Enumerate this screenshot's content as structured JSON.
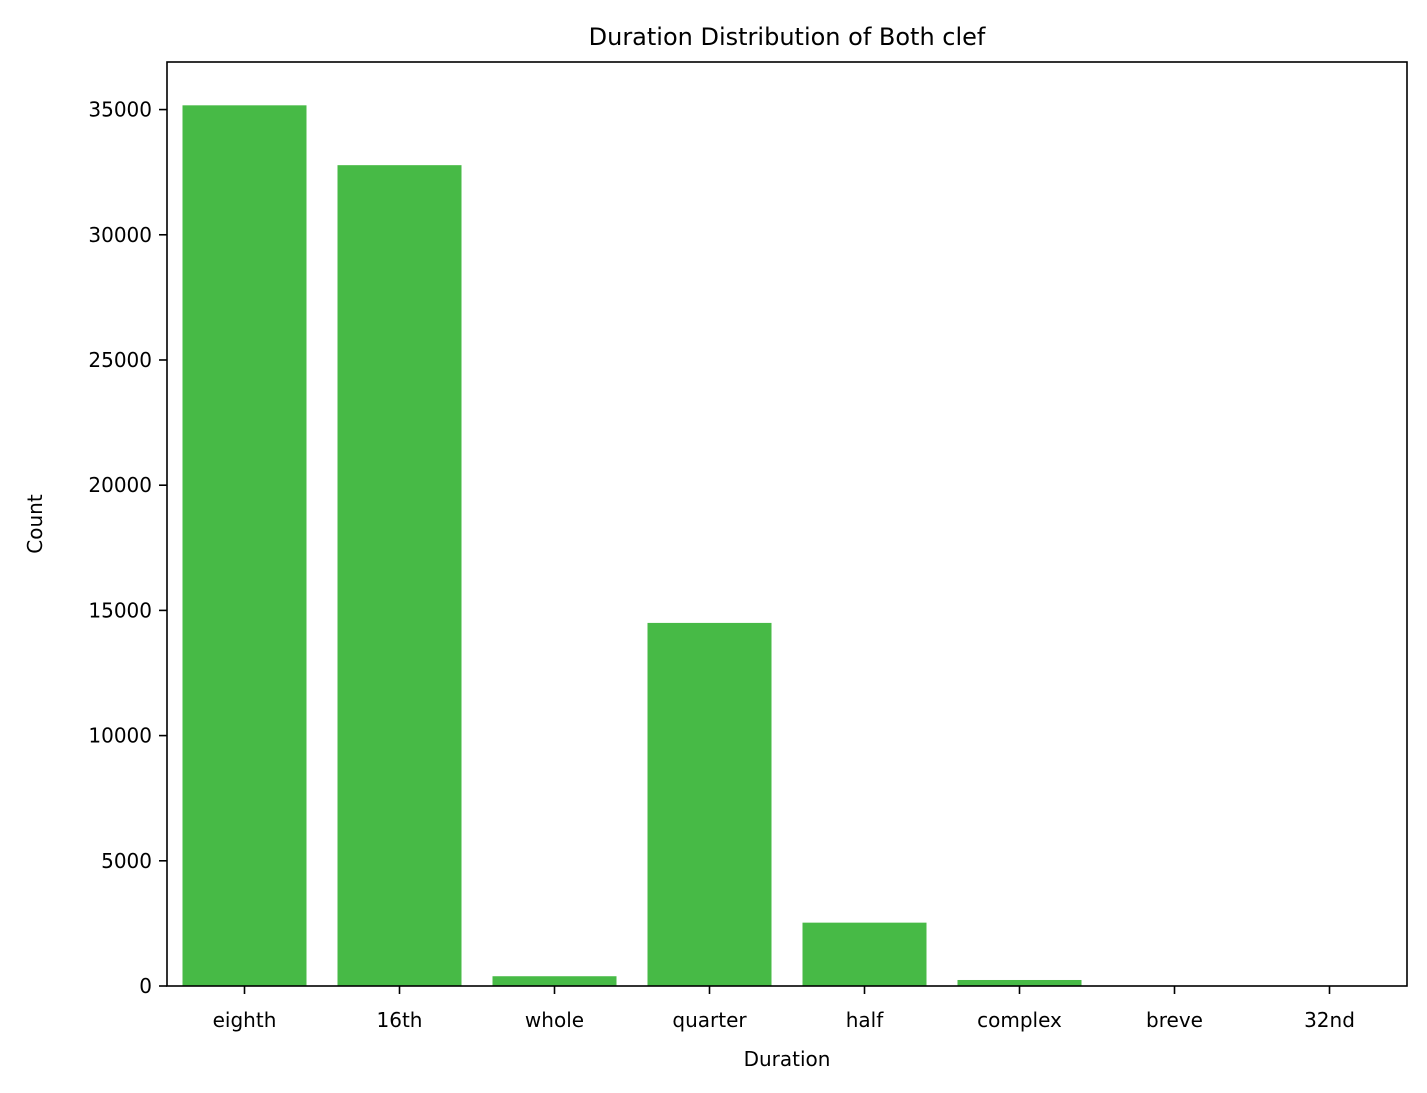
{
  "chart_data": {
    "type": "bar",
    "title": "Duration Distribution of Both clef",
    "xlabel": "Duration",
    "ylabel": "Count",
    "categories": [
      "eighth",
      "16th",
      "whole",
      "quarter",
      "half",
      "complex",
      "breve",
      "32nd"
    ],
    "values": [
      35170,
      32780,
      390,
      14500,
      2530,
      240,
      10,
      5
    ],
    "ylim": [
      0,
      36900
    ],
    "yticks": [
      0,
      5000,
      10000,
      15000,
      20000,
      25000,
      30000,
      35000
    ],
    "bar_color": "#47BA46",
    "grid": false,
    "legend": false
  }
}
